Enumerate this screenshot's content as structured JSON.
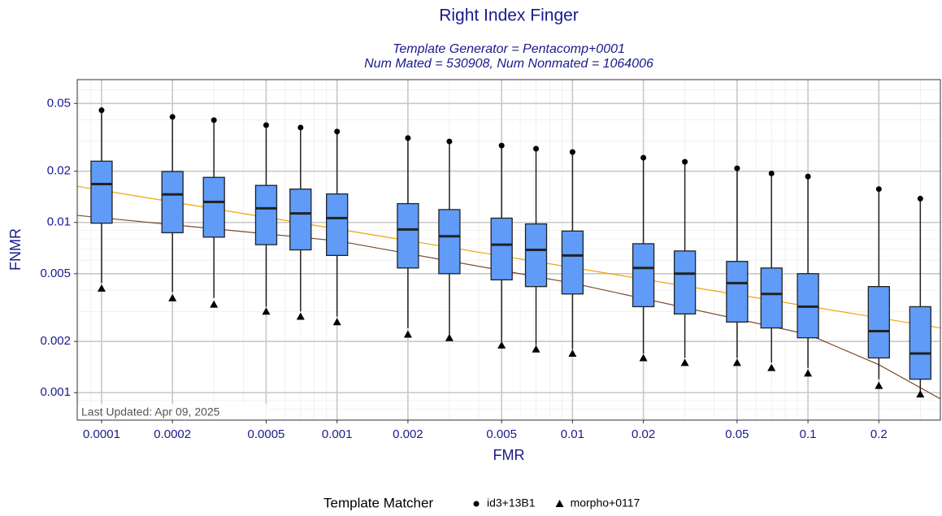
{
  "chart_data": {
    "type": "boxplot",
    "title": "Right Index Finger",
    "subtitle": [
      "Template Generator = Pentacomp+0001",
      "Num Mated = 530908, Num Nonmated = 1064006"
    ],
    "annotation": "Last Updated: Apr 09, 2025",
    "x_label": "FMR",
    "y_label": "FNMR",
    "log_x": true,
    "log_y": true,
    "grid": true,
    "minor_grid": true,
    "xlim": [
      7.88e-05,
      0.365
    ],
    "ylim": [
      0.00069,
      0.069
    ],
    "xticks": [
      0.0001,
      0.0002,
      0.0005,
      0.001,
      0.002,
      0.005,
      0.01,
      0.02,
      0.05,
      0.1,
      0.2
    ],
    "yticks": [
      0.001,
      0.002,
      0.005,
      0.01,
      0.02,
      0.05
    ],
    "x": [
      0.0001,
      0.0002,
      0.0003,
      0.0005,
      0.0007,
      0.001,
      0.002,
      0.003,
      0.005,
      0.007,
      0.01,
      0.02,
      0.03,
      0.05,
      0.07,
      0.1,
      0.2,
      0.3
    ],
    "box_color": "#5f9bf7",
    "boxes": {
      "whisker_high": [
        0.0441,
        0.0404,
        0.0386,
        0.0361,
        0.0349,
        0.0331,
        0.0306,
        0.0293,
        0.0277,
        0.0265,
        0.0253,
        0.0235,
        0.0222,
        0.0203,
        0.019,
        0.0182,
        0.0154,
        0.0135
      ],
      "q3": [
        0.0229,
        0.0199,
        0.0184,
        0.0165,
        0.0157,
        0.0147,
        0.0129,
        0.0119,
        0.0106,
        0.0098,
        0.0089,
        0.0075,
        0.0068,
        0.0059,
        0.0054,
        0.005,
        0.0042,
        0.0032
      ],
      "median": [
        0.0168,
        0.0146,
        0.0132,
        0.0121,
        0.0113,
        0.0106,
        0.0091,
        0.0083,
        0.0074,
        0.0069,
        0.0064,
        0.0054,
        0.005,
        0.0044,
        0.0038,
        0.0032,
        0.0023,
        0.0017
      ],
      "q1": [
        0.0099,
        0.0087,
        0.0082,
        0.0074,
        0.0069,
        0.0064,
        0.0054,
        0.005,
        0.0046,
        0.0042,
        0.0038,
        0.0032,
        0.0029,
        0.0026,
        0.0024,
        0.0021,
        0.0016,
        0.0012
      ],
      "whisker_low": [
        0.0044,
        0.0039,
        0.0036,
        0.0032,
        0.003,
        0.0028,
        0.0024,
        0.0022,
        0.002,
        0.0019,
        0.0018,
        0.0017,
        0.0016,
        0.0016,
        0.0015,
        0.0014,
        0.0012,
        0.001
      ]
    },
    "legend_title": "Template Matcher",
    "legend": "bottom",
    "series": [
      {
        "name": "id3+13B1",
        "marker": "circle",
        "color": "#000000",
        "values": [
          0.0456,
          0.0417,
          0.0399,
          0.0373,
          0.0361,
          0.0342,
          0.0313,
          0.0299,
          0.0283,
          0.0271,
          0.0259,
          0.024,
          0.0227,
          0.0208,
          0.0194,
          0.0186,
          0.0157,
          0.0138
        ]
      },
      {
        "name": "morpho+0117",
        "marker": "triangle",
        "color": "#000000",
        "values": [
          0.0041,
          0.0036,
          0.0033,
          0.003,
          0.0028,
          0.0026,
          0.0022,
          0.0021,
          0.0019,
          0.0018,
          0.0017,
          0.0016,
          0.0015,
          0.0015,
          0.0014,
          0.0013,
          0.0011,
          0.00098
        ]
      }
    ],
    "lines": [
      {
        "color": "#f0a400",
        "x": [
          7.88e-05,
          0.365
        ],
        "values": [
          0.0163,
          0.0024
        ]
      },
      {
        "color": "#7b4a2e",
        "x": [
          7.88e-05,
          0.001,
          0.01,
          0.1,
          0.2,
          0.365
        ],
        "values": [
          0.011,
          0.0078,
          0.0044,
          0.0022,
          0.00146,
          0.00092
        ]
      }
    ]
  }
}
